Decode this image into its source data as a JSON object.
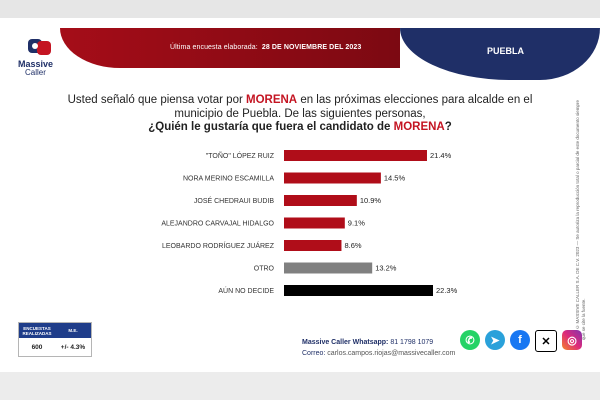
{
  "header": {
    "prefix": "Última encuesta elaborada:",
    "date": "28 DE NOVIEMBRE DEL 2023",
    "region": "PUEBLA"
  },
  "logo": {
    "line1": "Massive",
    "line2": "Caller"
  },
  "question": {
    "line1_a": "Usted señaló que piensa votar por ",
    "line1_party": "MORENA",
    "line1_b": " en las próximas elecciones para alcalde en el",
    "line2": "municipio de Puebla.  De las siguientes personas,",
    "line3_a": "¿Quién le gustaría que fuera el candidato de ",
    "line3_party": "MORENA",
    "line3_b": "?"
  },
  "side_note": "D.R. © MASSIVE CALLER S.A. DE C.V. 2023 — Se autoriza la reproducción total o parcial de este documento siempre que se cite la fuente.",
  "chart_data": {
    "type": "bar",
    "orientation": "horizontal",
    "categories": [
      "\"TOÑO\" LÓPEZ RUIZ",
      "NORA MERINO ESCAMILLA",
      "JOSÉ CHEDRAUI BUDIB",
      "ALEJANDRO CARVAJAL HIDALGO",
      "LEOBARDO RODRÍGUEZ JUÁREZ",
      "OTRO",
      "AÚN NO DECIDE"
    ],
    "values": [
      21.4,
      14.5,
      10.9,
      9.1,
      8.6,
      13.2,
      22.3
    ],
    "value_labels": [
      "21.4%",
      "14.5%",
      "10.9%",
      "9.1%",
      "8.6%",
      "13.2%",
      "22.3%"
    ],
    "colors": [
      "#b00d19",
      "#b00d19",
      "#b00d19",
      "#b00d19",
      "#b00d19",
      "#808080",
      "#000000"
    ],
    "xlim": [
      0,
      22.3
    ],
    "grid": false
  },
  "survey_table": {
    "headers": [
      "ENCUESTAS REALIZADAS",
      "M.E."
    ],
    "values": [
      "600",
      "+/- 4.3%"
    ]
  },
  "contact": {
    "whatsapp_label": "Massive Caller Whatsapp:",
    "whatsapp_number": "81 1798 1079",
    "email_label": "Correo:",
    "email": "carlos.campos.riojas@massivecaller.com"
  },
  "social": {
    "icons": [
      "whatsapp-icon",
      "telegram-icon",
      "facebook-icon",
      "x-icon",
      "instagram-icon"
    ]
  }
}
